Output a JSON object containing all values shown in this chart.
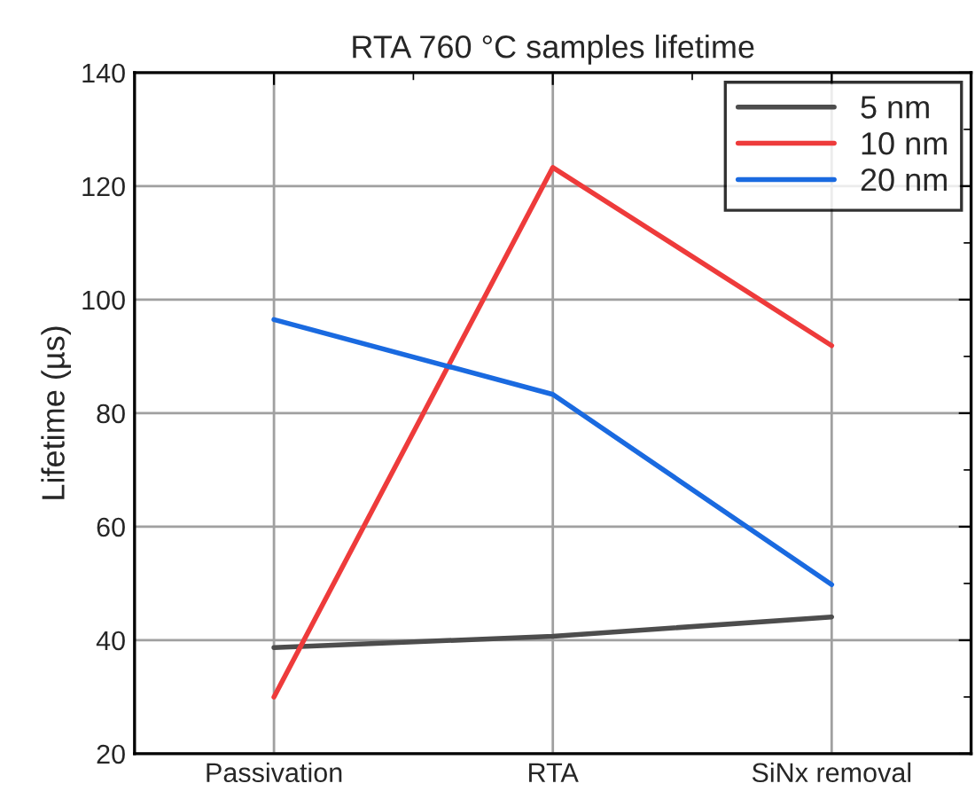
{
  "chart_data": {
    "type": "line",
    "title": "RTA 760 °C samples lifetime",
    "ylabel": "Lifetime (µs)",
    "categories": [
      "Passivation",
      "RTA",
      "SiNx removal"
    ],
    "series": [
      {
        "name": "5 nm",
        "color": "#4d4d4d",
        "values": [
          38.7,
          40.7,
          44.1
        ]
      },
      {
        "name": "10 nm",
        "color": "#ee3b3b",
        "values": [
          30,
          123.3,
          91.9
        ]
      },
      {
        "name": "20 nm",
        "color": "#1a6ae0",
        "values": [
          96.5,
          83.3,
          49.8
        ]
      }
    ],
    "ylim": [
      20,
      140
    ],
    "yticks": [
      20,
      40,
      60,
      80,
      100,
      120,
      140
    ],
    "grid": true,
    "legend": "top right",
    "marker": "none",
    "line_style": "solid"
  }
}
